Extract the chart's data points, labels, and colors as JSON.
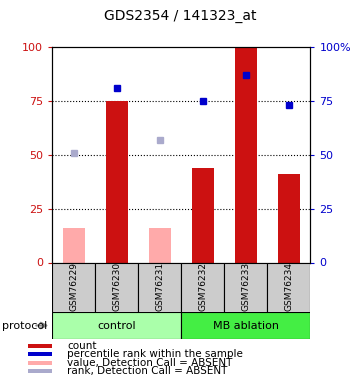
{
  "title": "GDS2354 / 141323_at",
  "samples": [
    "GSM76229",
    "GSM76230",
    "GSM76231",
    "GSM76232",
    "GSM76233",
    "GSM76234"
  ],
  "red_bars": [
    null,
    75,
    null,
    44,
    100,
    41
  ],
  "pink_bars": [
    16,
    null,
    16,
    null,
    null,
    null
  ],
  "blue_squares": [
    null,
    81,
    null,
    75,
    87,
    73
  ],
  "light_blue_squares": [
    51,
    null,
    57,
    null,
    null,
    null
  ],
  "ylim": [
    0,
    100
  ],
  "dotted_lines": [
    25,
    50,
    75
  ],
  "red_color": "#cc1111",
  "pink_color": "#ffaaaa",
  "blue_color": "#0000cc",
  "light_blue_color": "#aaaacc",
  "bar_width": 0.5,
  "ctrl_color": "#aaffaa",
  "mb_color": "#44ee44",
  "gray_color": "#cccccc",
  "legend_items": [
    {
      "label": "count",
      "color": "#cc1111"
    },
    {
      "label": "percentile rank within the sample",
      "color": "#0000cc"
    },
    {
      "label": "value, Detection Call = ABSENT",
      "color": "#ffaaaa"
    },
    {
      "label": "rank, Detection Call = ABSENT",
      "color": "#aaaacc"
    }
  ]
}
